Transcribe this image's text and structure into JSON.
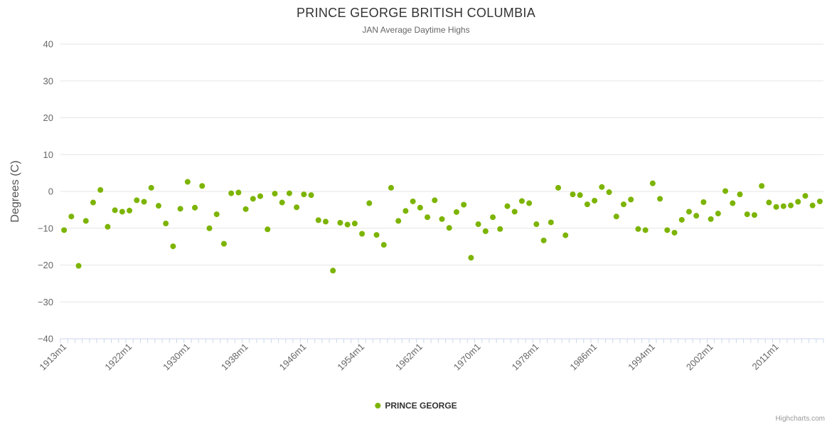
{
  "header": {
    "title": "PRINCE GEORGE BRITISH COLUMBIA",
    "subtitle": "JAN Average Daytime Highs"
  },
  "y_axis_title": "Degrees (C)",
  "legend": {
    "series_label": "PRINCE GEORGE"
  },
  "credit": "Highcharts.com",
  "colors": {
    "point": "#7cb400",
    "grid": "#e6e6e6",
    "axis_line": "#ccd6eb",
    "tick_label": "#666666",
    "title": "#333333",
    "subtitle": "#666666"
  },
  "chart_data": {
    "type": "scatter",
    "title": "PRINCE GEORGE BRITISH COLUMBIA",
    "subtitle": "JAN Average Daytime Highs",
    "xlabel": "",
    "ylabel": "Degrees (C)",
    "ylim": [
      -40,
      40
    ],
    "y_ticks": [
      40,
      30,
      20,
      10,
      0,
      -10,
      -20,
      -30,
      -40
    ],
    "grid": true,
    "legend_position": "bottom",
    "x_start_year": 1913,
    "x_label_suffix": "m1",
    "x_tick_labels": [
      "1913m1",
      "1922m1",
      "1930m1",
      "1938m1",
      "1946m1",
      "1954m1",
      "1962m1",
      "1970m1",
      "1978m1",
      "1986m1",
      "1994m1",
      "2002m1",
      "2011m1"
    ],
    "series": [
      {
        "name": "PRINCE GEORGE",
        "color": "#7cb400",
        "start_year": 1913,
        "values": [
          -10.5,
          -6.8,
          -20.2,
          -8.0,
          -3.0,
          0.4,
          -9.6,
          -5.1,
          -5.5,
          -5.2,
          -2.4,
          -2.8,
          1.0,
          -3.9,
          -8.7,
          -14.9,
          -4.7,
          2.6,
          -4.4,
          1.5,
          -10.0,
          -6.2,
          -14.2,
          -0.5,
          -0.3,
          -4.8,
          -2.0,
          -1.3,
          -10.3,
          -0.6,
          -3.0,
          -0.5,
          -4.3,
          -0.8,
          -1.0,
          -7.8,
          -8.2,
          -21.5,
          -8.5,
          -9.0,
          -8.7,
          -11.5,
          -3.2,
          -11.8,
          -14.5,
          1.0,
          -8.0,
          -5.3,
          -2.7,
          -4.4,
          -7.0,
          -2.4,
          -7.5,
          -9.9,
          -5.6,
          -3.6,
          -18.0,
          -8.9,
          -10.8,
          -7.0,
          -10.2,
          -4.0,
          -5.5,
          -2.6,
          -3.2,
          -8.9,
          -13.3,
          -8.4,
          1.0,
          -11.9,
          -0.8,
          -1.0,
          -3.5,
          -2.5,
          1.2,
          -0.2,
          -6.8,
          -3.5,
          -2.2,
          -10.2,
          -10.5,
          2.2,
          -2.0,
          -10.5,
          -11.2,
          -7.7,
          -5.5,
          -6.6,
          -2.9,
          -7.5,
          -6.0,
          0.1,
          -3.2,
          -0.8,
          -6.2,
          -6.4,
          1.5,
          -3.0,
          -4.2,
          -4.0,
          -3.8,
          -2.8,
          -1.2,
          -3.8,
          -2.7
        ]
      }
    ]
  }
}
